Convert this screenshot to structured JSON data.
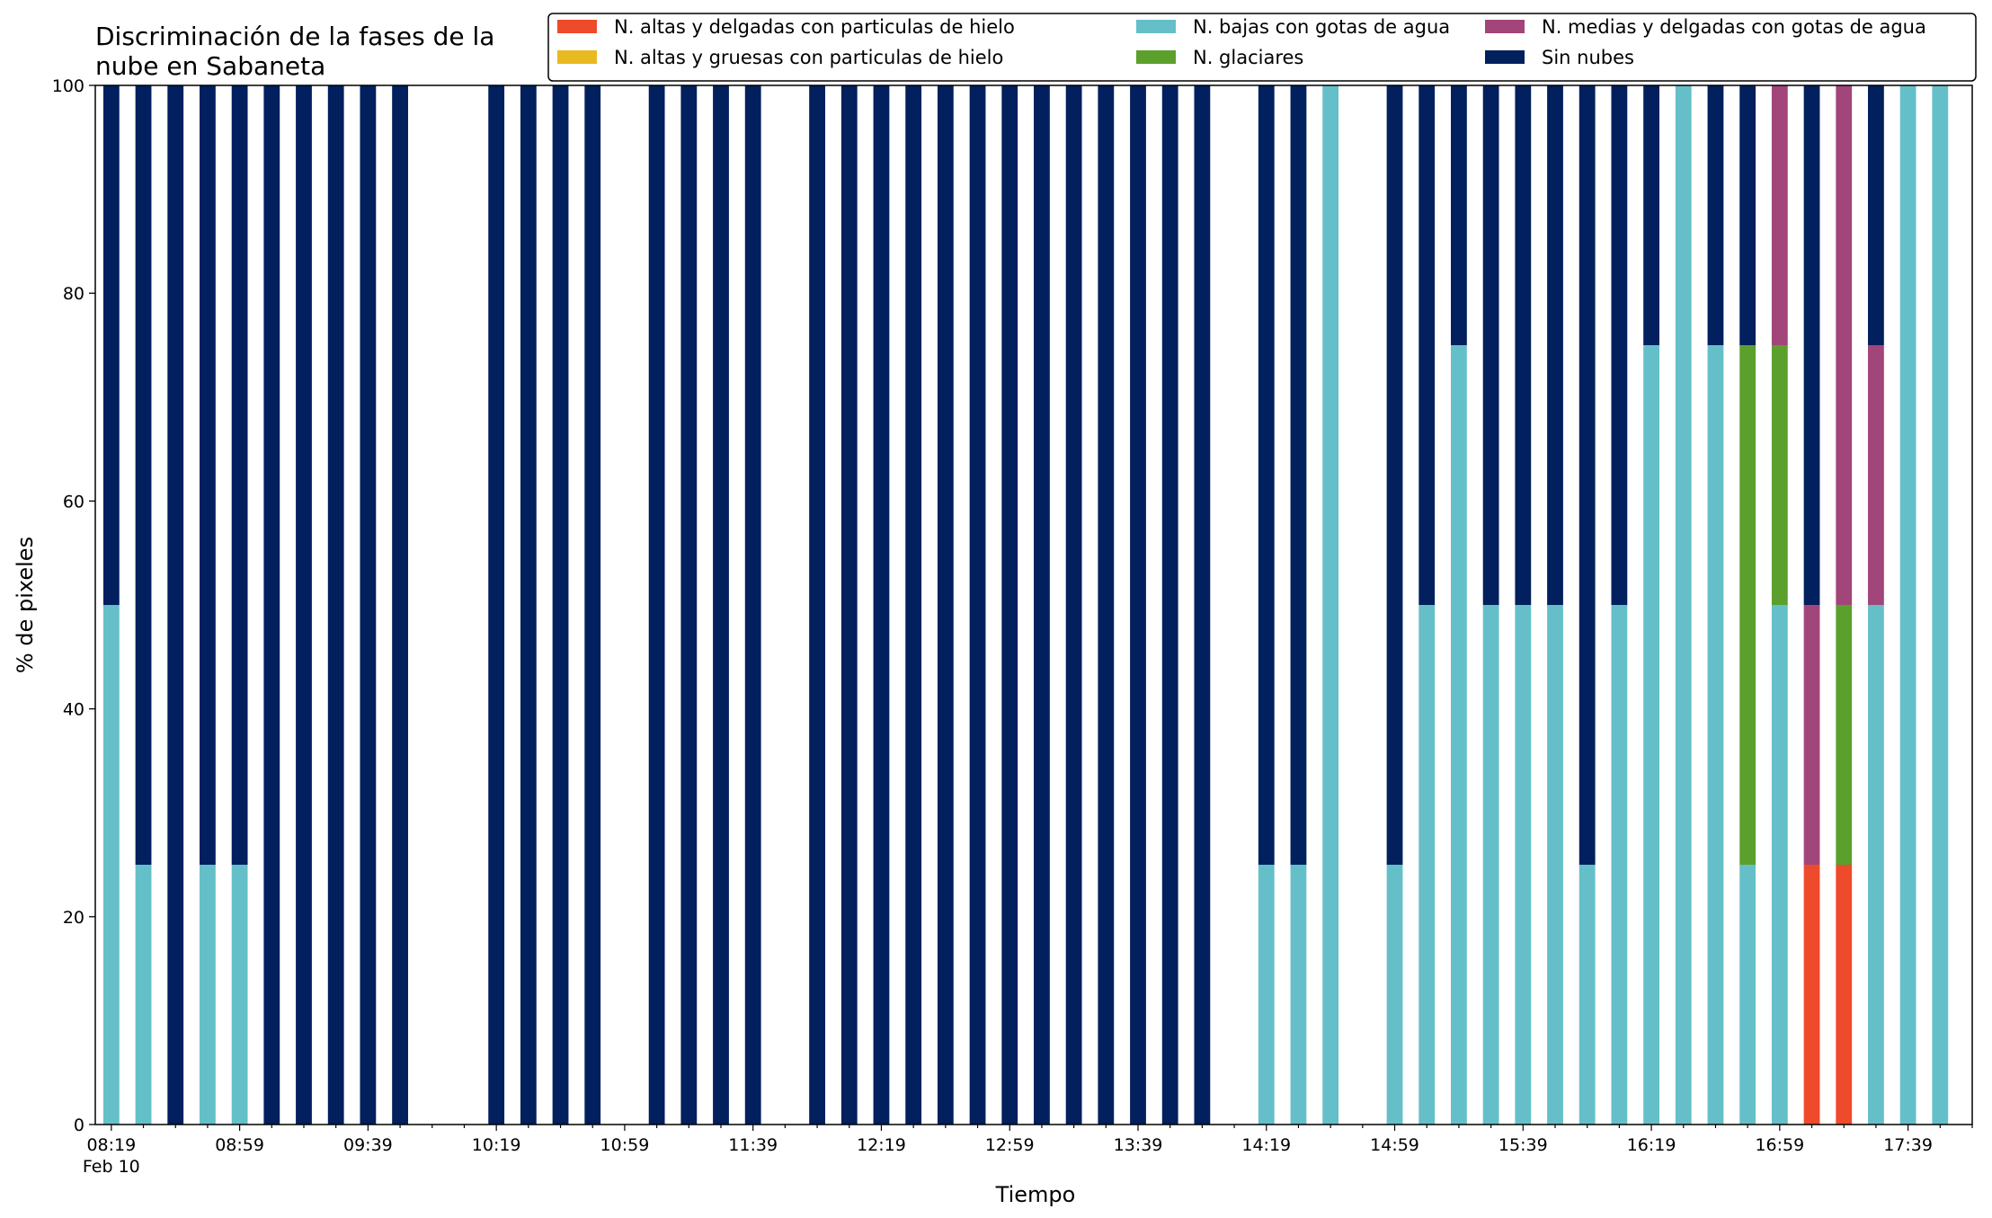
{
  "chart_data": {
    "type": "bar",
    "stacked": true,
    "title_lines": [
      "Discriminación de la fases de la",
      "nube en Sabaneta"
    ],
    "xlabel": "Tiempo",
    "ylabel": "% de pixeles",
    "ylim": [
      0,
      100
    ],
    "yticks": [
      0,
      20,
      40,
      60,
      80,
      100
    ],
    "xlim": [
      "08:14",
      "17:59"
    ],
    "xtick_labels": [
      "08:19",
      "08:59",
      "09:39",
      "10:19",
      "10:59",
      "11:39",
      "12:19",
      "12:59",
      "13:39",
      "14:19",
      "14:59",
      "15:39",
      "16:19",
      "16:59",
      "17:39"
    ],
    "xtick_date_label": "Feb 10",
    "grid": false,
    "legend_position": "top-right",
    "series": [
      {
        "name": "N. altas y delgadas con particulas de hielo",
        "color": "#ee4a2c"
      },
      {
        "name": "N. altas y gruesas con particulas de hielo",
        "color": "#e8ba1f"
      },
      {
        "name": "N. bajas con gotas de agua",
        "color": "#65bfc9"
      },
      {
        "name": "N. glaciares",
        "color": "#5ba02d"
      },
      {
        "name": "N. medias y delgadas con gotas de agua",
        "color": "#a24579"
      },
      {
        "name": "Sin nubes",
        "color": "#021f5e"
      }
    ],
    "bars": [
      {
        "time": "08:19",
        "values": [
          0,
          0,
          50,
          0,
          0,
          50
        ]
      },
      {
        "time": "08:29",
        "values": [
          0,
          0,
          25,
          0,
          0,
          75
        ]
      },
      {
        "time": "08:39",
        "values": [
          0,
          0,
          0,
          0,
          0,
          100
        ]
      },
      {
        "time": "08:49",
        "values": [
          0,
          0,
          25,
          0,
          0,
          75
        ]
      },
      {
        "time": "08:59",
        "values": [
          0,
          0,
          25,
          0,
          0,
          75
        ]
      },
      {
        "time": "09:09",
        "values": [
          0,
          0,
          0,
          0,
          0,
          100
        ]
      },
      {
        "time": "09:19",
        "values": [
          0,
          0,
          0,
          0,
          0,
          100
        ]
      },
      {
        "time": "09:29",
        "values": [
          0,
          0,
          0,
          0,
          0,
          100
        ]
      },
      {
        "time": "09:39",
        "values": [
          0,
          0,
          0,
          0,
          0,
          100
        ]
      },
      {
        "time": "09:49",
        "values": [
          0,
          0,
          0,
          0,
          0,
          100
        ]
      },
      {
        "time": "10:19",
        "values": [
          0,
          0,
          0,
          0,
          0,
          100
        ]
      },
      {
        "time": "10:29",
        "values": [
          0,
          0,
          0,
          0,
          0,
          100
        ]
      },
      {
        "time": "10:39",
        "values": [
          0,
          0,
          0,
          0,
          0,
          100
        ]
      },
      {
        "time": "10:49",
        "values": [
          0,
          0,
          0,
          0,
          0,
          100
        ]
      },
      {
        "time": "11:09",
        "values": [
          0,
          0,
          0,
          0,
          0,
          100
        ]
      },
      {
        "time": "11:19",
        "values": [
          0,
          0,
          0,
          0,
          0,
          100
        ]
      },
      {
        "time": "11:29",
        "values": [
          0,
          0,
          0,
          0,
          0,
          100
        ]
      },
      {
        "time": "11:39",
        "values": [
          0,
          0,
          0,
          0,
          0,
          100
        ]
      },
      {
        "time": "11:59",
        "values": [
          0,
          0,
          0,
          0,
          0,
          100
        ]
      },
      {
        "time": "12:09",
        "values": [
          0,
          0,
          0,
          0,
          0,
          100
        ]
      },
      {
        "time": "12:19",
        "values": [
          0,
          0,
          0,
          0,
          0,
          100
        ]
      },
      {
        "time": "12:29",
        "values": [
          0,
          0,
          0,
          0,
          0,
          100
        ]
      },
      {
        "time": "12:39",
        "values": [
          0,
          0,
          0,
          0,
          0,
          100
        ]
      },
      {
        "time": "12:49",
        "values": [
          0,
          0,
          0,
          0,
          0,
          100
        ]
      },
      {
        "time": "12:59",
        "values": [
          0,
          0,
          0,
          0,
          0,
          100
        ]
      },
      {
        "time": "13:09",
        "values": [
          0,
          0,
          0,
          0,
          0,
          100
        ]
      },
      {
        "time": "13:19",
        "values": [
          0,
          0,
          0,
          0,
          0,
          100
        ]
      },
      {
        "time": "13:29",
        "values": [
          0,
          0,
          0,
          0,
          0,
          100
        ]
      },
      {
        "time": "13:39",
        "values": [
          0,
          0,
          0,
          0,
          0,
          100
        ]
      },
      {
        "time": "13:49",
        "values": [
          0,
          0,
          0,
          0,
          0,
          100
        ]
      },
      {
        "time": "13:59",
        "values": [
          0,
          0,
          0,
          0,
          0,
          100
        ]
      },
      {
        "time": "14:19",
        "values": [
          0,
          0,
          25,
          0,
          0,
          75
        ]
      },
      {
        "time": "14:29",
        "values": [
          0,
          0,
          25,
          0,
          0,
          75
        ]
      },
      {
        "time": "14:39",
        "values": [
          0,
          0,
          100,
          0,
          0,
          0
        ]
      },
      {
        "time": "14:59",
        "values": [
          0,
          0,
          25,
          0,
          0,
          75
        ]
      },
      {
        "time": "15:09",
        "values": [
          0,
          0,
          50,
          0,
          0,
          50
        ]
      },
      {
        "time": "15:19",
        "values": [
          0,
          0,
          75,
          0,
          0,
          25
        ]
      },
      {
        "time": "15:29",
        "values": [
          0,
          0,
          50,
          0,
          0,
          50
        ]
      },
      {
        "time": "15:39",
        "values": [
          0,
          0,
          50,
          0,
          0,
          50
        ]
      },
      {
        "time": "15:49",
        "values": [
          0,
          0,
          50,
          0,
          0,
          50
        ]
      },
      {
        "time": "15:59",
        "values": [
          0,
          0,
          25,
          0,
          0,
          75
        ]
      },
      {
        "time": "16:09",
        "values": [
          0,
          0,
          50,
          0,
          0,
          50
        ]
      },
      {
        "time": "16:19",
        "values": [
          0,
          0,
          75,
          0,
          0,
          25
        ]
      },
      {
        "time": "16:29",
        "values": [
          0,
          0,
          100,
          0,
          0,
          0
        ]
      },
      {
        "time": "16:39",
        "values": [
          0,
          0,
          75,
          0,
          0,
          25
        ]
      },
      {
        "time": "16:49",
        "values": [
          0,
          0,
          25,
          50,
          0,
          25
        ]
      },
      {
        "time": "16:59",
        "values": [
          0,
          0,
          50,
          25,
          25,
          0
        ]
      },
      {
        "time": "17:09",
        "values": [
          25,
          0,
          0,
          0,
          25,
          50
        ]
      },
      {
        "time": "17:19",
        "values": [
          25,
          0,
          0,
          25,
          50,
          0
        ]
      },
      {
        "time": "17:29",
        "values": [
          0,
          0,
          50,
          0,
          25,
          25
        ]
      },
      {
        "time": "17:39",
        "values": [
          0,
          0,
          100,
          0,
          0,
          0
        ]
      },
      {
        "time": "17:49",
        "values": [
          0,
          0,
          100,
          0,
          0,
          0
        ]
      }
    ]
  }
}
